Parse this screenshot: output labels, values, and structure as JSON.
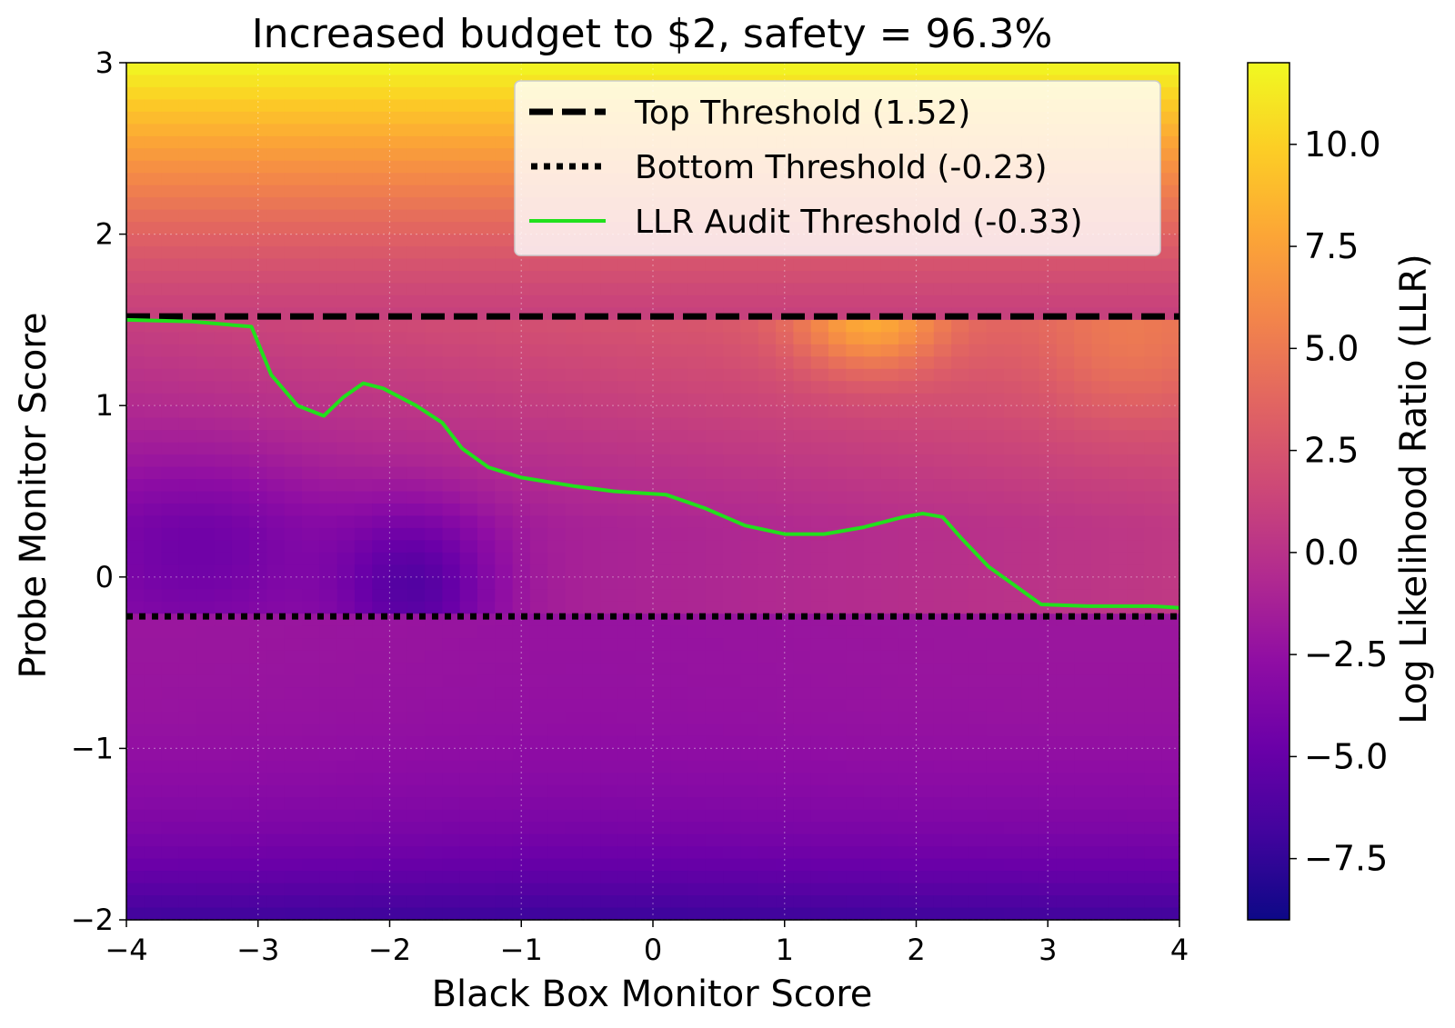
{
  "chart_data": {
    "type": "heatmap",
    "title": "Increased budget to $2, safety = 96.3%",
    "xlabel": "Black Box Monitor Score",
    "ylabel": "Probe Monitor Score",
    "xlim": [
      -4,
      4
    ],
    "ylim": [
      -2,
      3
    ],
    "xticks": [
      -4,
      -3,
      -2,
      -1,
      0,
      1,
      2,
      3,
      4
    ],
    "xtick_labels": [
      "−4",
      "−3",
      "−2",
      "−1",
      "0",
      "1",
      "2",
      "3",
      "4"
    ],
    "yticks": [
      -2,
      -1,
      0,
      1,
      2,
      3
    ],
    "ytick_labels": [
      "−2",
      "−1",
      "0",
      "1",
      "2",
      "3"
    ],
    "grid": true,
    "colorbar": {
      "label": "Log Likelihood Ratio (LLR)",
      "colormap": "plasma",
      "vmin": -9,
      "vmax": 12,
      "ticks": [
        -7.5,
        -5.0,
        -2.5,
        0.0,
        2.5,
        5.0,
        7.5,
        10.0
      ],
      "tick_labels": [
        "−7.5",
        "−5.0",
        "−2.5",
        "0.0",
        "2.5",
        "5.0",
        "7.5",
        "10.0"
      ]
    },
    "thresholds": {
      "top": 1.52,
      "bottom": -0.23,
      "llr_audit": -0.33
    },
    "legend": {
      "placement": "top-right",
      "entries": [
        {
          "label": "Top Threshold (1.52)",
          "style": "dashed"
        },
        {
          "label": "Bottom Threshold (-0.23)",
          "style": "dotted"
        },
        {
          "label": "LLR Audit Threshold (-0.33)",
          "style": "solid-green"
        }
      ]
    },
    "audit_curve": {
      "x": [
        -4.0,
        -3.5,
        -3.05,
        -2.9,
        -2.7,
        -2.5,
        -2.35,
        -2.2,
        -2.05,
        -1.8,
        -1.6,
        -1.45,
        -1.25,
        -1.0,
        -0.6,
        -0.3,
        0.1,
        0.4,
        0.7,
        1.0,
        1.3,
        1.6,
        1.9,
        2.05,
        2.2,
        2.35,
        2.55,
        2.75,
        2.95,
        3.3,
        3.6,
        3.8,
        4.0
      ],
      "y": [
        1.5,
        1.49,
        1.46,
        1.18,
        1.0,
        0.94,
        1.05,
        1.13,
        1.1,
        1.0,
        0.9,
        0.75,
        0.64,
        0.58,
        0.53,
        0.5,
        0.48,
        0.4,
        0.3,
        0.25,
        0.25,
        0.29,
        0.35,
        0.37,
        0.35,
        0.22,
        0.06,
        -0.05,
        -0.16,
        -0.17,
        -0.17,
        -0.17,
        -0.18
      ],
      "color": "#22e01c"
    },
    "heatmap_model": {
      "description": "LLR field sampled on a grid: upper band (y above top threshold) rises from ~1 at 1.5 to ~12 at 3; lower band (y below bottom threshold) ranges ~-2 near threshold to ~-7 at -2; middle band depends on both scores with a minimum near (-1.8, -0.1) and a bright bump near (1.6, 1.4).",
      "grid_nx": 60,
      "grid_ny": 70
    }
  }
}
